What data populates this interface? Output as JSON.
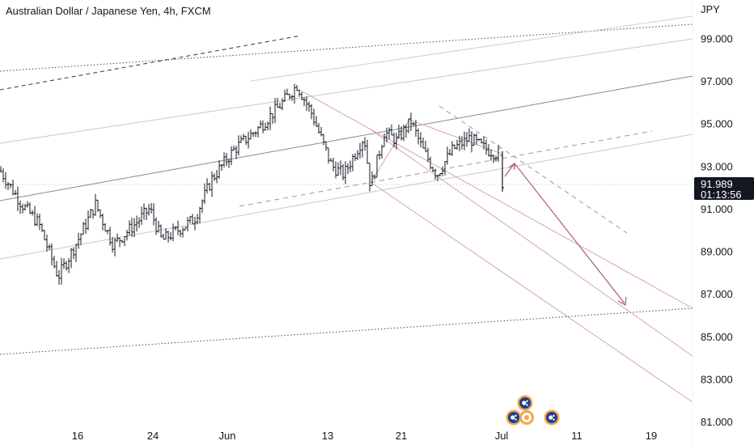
{
  "header": {
    "title": "Australian Dollar / Japanese Yen, 4h, FXCM"
  },
  "axis": {
    "currency": "JPY",
    "price_ticks": [
      "99.000",
      "97.000",
      "95.000",
      "93.000",
      "91.000",
      "89.000",
      "87.000",
      "85.000",
      "83.000",
      "81.000"
    ],
    "time_ticks": [
      "16",
      "24",
      "Jun",
      "13",
      "21",
      "Jul",
      "11",
      "19"
    ]
  },
  "last_price": {
    "value": "91.989",
    "countdown": "01:13:56",
    "color": "#131722"
  },
  "colors": {
    "candle": "#131722",
    "trend_gray": "#9e9e9e",
    "channel_pink": "#d6a3ae",
    "arrow_pink": "#a8526a",
    "dotted": "#555555"
  },
  "icons": [
    "australia-flag-icon",
    "australia-flag-icon",
    "australia-flag-icon",
    "australia-flag-icon"
  ],
  "chart_data": {
    "type": "candlestick",
    "title": "Australian Dollar / Japanese Yen, 4h, FXCM",
    "ylabel": "JPY",
    "ylim": [
      79.9,
      100.8
    ],
    "x_ticks": [
      "16",
      "24",
      "Jun",
      "13",
      "21",
      "Jul",
      "11",
      "19"
    ],
    "price_path": [
      [
        0,
        92.8
      ],
      [
        27,
        91.2
      ],
      [
        48,
        90.3
      ],
      [
        72,
        87.8
      ],
      [
        92,
        89.2
      ],
      [
        118,
        91.2
      ],
      [
        140,
        89.3
      ],
      [
        165,
        90.2
      ],
      [
        185,
        91.0
      ],
      [
        200,
        89.5
      ],
      [
        240,
        90.5
      ],
      [
        262,
        92.4
      ],
      [
        290,
        93.8
      ],
      [
        320,
        94.8
      ],
      [
        345,
        95.8
      ],
      [
        367,
        96.8
      ],
      [
        385,
        95.5
      ],
      [
        410,
        93.0
      ],
      [
        425,
        92.6
      ],
      [
        450,
        94.4
      ],
      [
        458,
        92.0
      ],
      [
        475,
        94.6
      ],
      [
        490,
        94.2
      ],
      [
        508,
        95.1
      ],
      [
        522,
        93.8
      ],
      [
        540,
        92.6
      ],
      [
        560,
        93.8
      ],
      [
        580,
        94.3
      ],
      [
        600,
        93.8
      ],
      [
        621,
        93.5
      ]
    ],
    "last_candle": {
      "open": 93.5,
      "high": 93.7,
      "low": 91.8,
      "close": 91.989
    }
  }
}
